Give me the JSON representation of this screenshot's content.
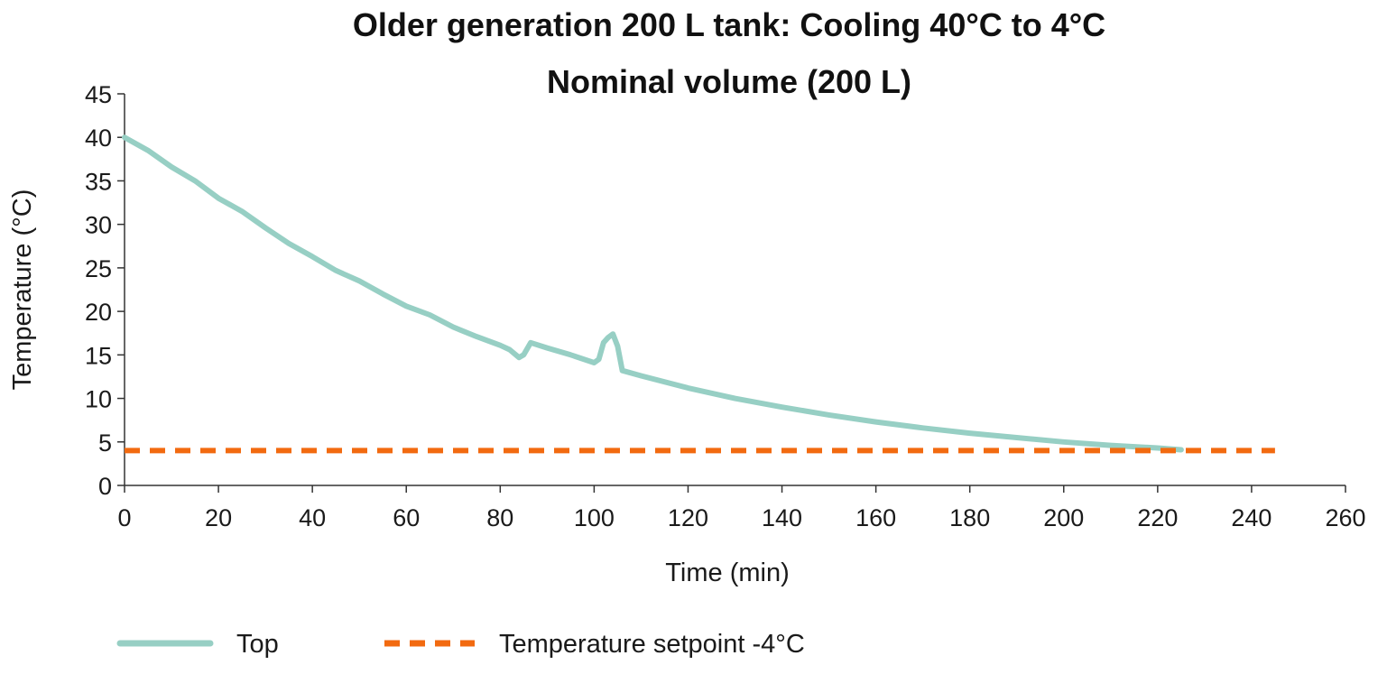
{
  "chart_data": {
    "type": "line",
    "title": "Older generation 200 L tank: Cooling 40°C to 4°C",
    "subtitle": "Nominal volume (200 L)",
    "xlabel": "Time (min)",
    "ylabel": "Temperature (°C)",
    "xlim": [
      0,
      260
    ],
    "ylim": [
      0,
      45
    ],
    "xticks": [
      0,
      20,
      40,
      60,
      80,
      100,
      120,
      140,
      160,
      180,
      200,
      220,
      240,
      260
    ],
    "yticks": [
      0,
      5,
      10,
      15,
      20,
      25,
      30,
      35,
      40,
      45
    ],
    "grid": false,
    "legend_position": "bottom",
    "series": [
      {
        "name": "Top",
        "color": "#97cfc4",
        "style": "solid",
        "points": [
          [
            0,
            40
          ],
          [
            5,
            38.5
          ],
          [
            10,
            36.6
          ],
          [
            15,
            35
          ],
          [
            20,
            33
          ],
          [
            25,
            31.5
          ],
          [
            30,
            29.6
          ],
          [
            35,
            27.8
          ],
          [
            40,
            26.3
          ],
          [
            45,
            24.7
          ],
          [
            50,
            23.5
          ],
          [
            55,
            22
          ],
          [
            60,
            20.6
          ],
          [
            65,
            19.6
          ],
          [
            70,
            18.2
          ],
          [
            75,
            17.1
          ],
          [
            80,
            16.1
          ],
          [
            82,
            15.6
          ],
          [
            84,
            14.7
          ],
          [
            85,
            15
          ],
          [
            86.5,
            16.4
          ],
          [
            90,
            15.8
          ],
          [
            95,
            15
          ],
          [
            100,
            14.1
          ],
          [
            101,
            14.5
          ],
          [
            102,
            16.4
          ],
          [
            103,
            17
          ],
          [
            104,
            17.4
          ],
          [
            105,
            16
          ],
          [
            106,
            13.2
          ],
          [
            110,
            12.6
          ],
          [
            120,
            11.2
          ],
          [
            130,
            10
          ],
          [
            140,
            9
          ],
          [
            150,
            8.1
          ],
          [
            160,
            7.3
          ],
          [
            170,
            6.6
          ],
          [
            180,
            6
          ],
          [
            190,
            5.5
          ],
          [
            200,
            5
          ],
          [
            210,
            4.6
          ],
          [
            220,
            4.3
          ],
          [
            225,
            4.1
          ]
        ]
      },
      {
        "name": "Temperature setpoint -4°C",
        "color": "#f26a10",
        "style": "dashed",
        "points": [
          [
            0,
            4
          ],
          [
            245,
            4
          ]
        ]
      }
    ]
  }
}
